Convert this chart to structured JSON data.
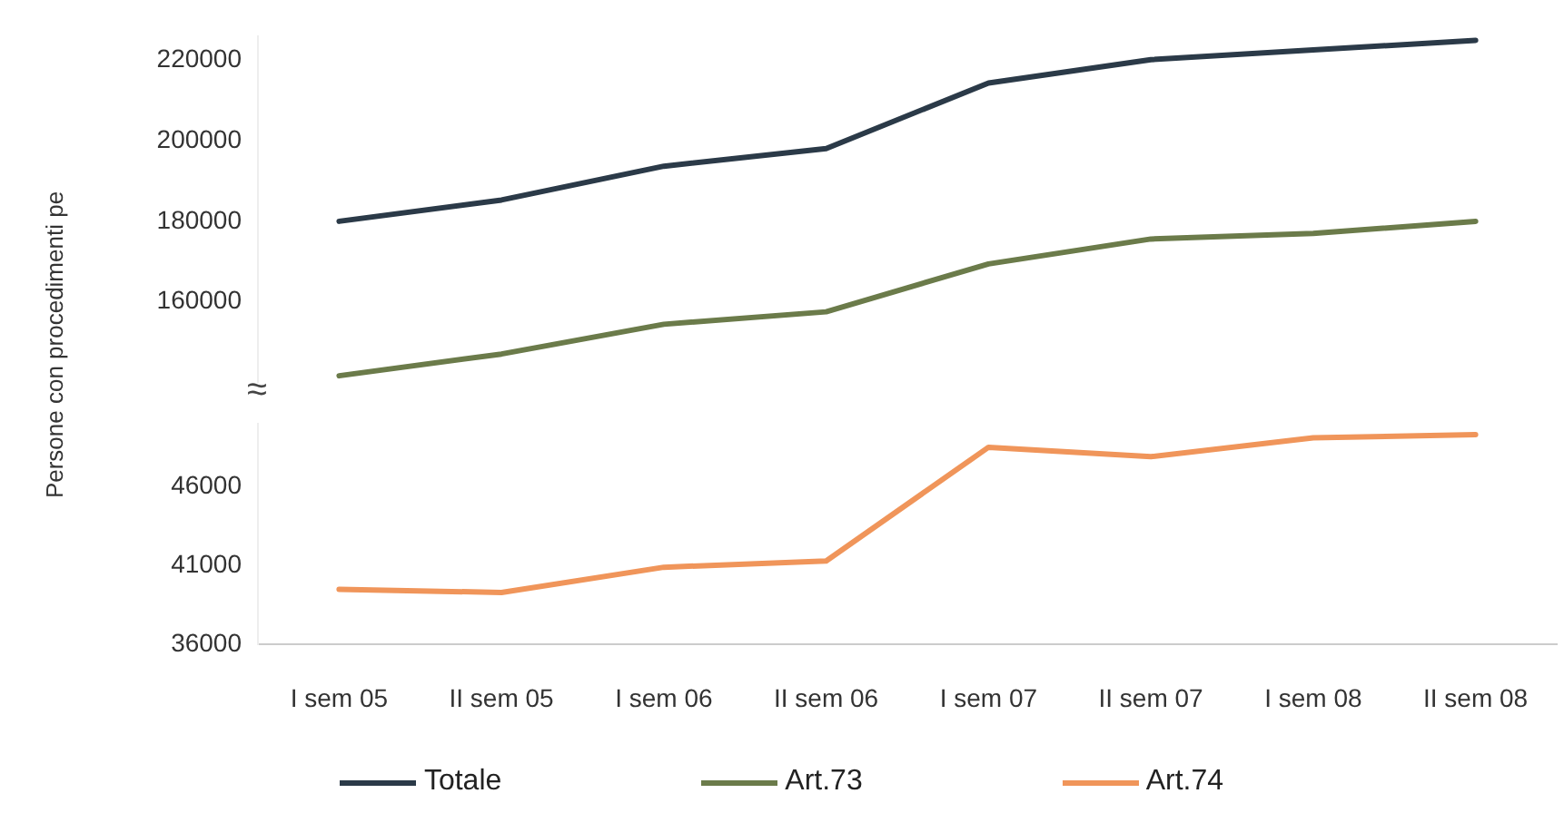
{
  "chart_data": [
    {
      "type": "line",
      "ylabel": "Persone con procedimenti pe",
      "categories": [
        "I sem 05",
        "II sem 05",
        "I sem 06",
        "II sem 06",
        "I sem 07",
        "II sem 07",
        "I sem 08",
        "II sem 08"
      ],
      "series": [
        {
          "name": "Totale",
          "color": "#2b3a48",
          "values": [
            180000,
            185300,
            193700,
            198100,
            214400,
            220200,
            222600,
            225000
          ]
        },
        {
          "name": "Art.73",
          "color": "#6b7b4a",
          "values": [
            141600,
            147000,
            154400,
            157500,
            169400,
            175600,
            177000,
            180000
          ]
        }
      ],
      "ylim": [
        140000,
        226000
      ],
      "yticks": [
        160000,
        180000,
        200000,
        220000
      ],
      "tick_labels": "y",
      "annotations": [
        "≈"
      ],
      "grid": false,
      "legend": "bottom",
      "marker": "none",
      "line_style": "solid"
    },
    {
      "type": "line",
      "categories": [
        "I sem 05",
        "II sem 05",
        "I sem 06",
        "II sem 06",
        "I sem 07",
        "II sem 07",
        "I sem 08",
        "II sem 08"
      ],
      "series": [
        {
          "name": "Art.74",
          "color": "#f0955a",
          "values": [
            39500,
            39300,
            40900,
            41300,
            48500,
            47900,
            49100,
            49300
          ]
        }
      ],
      "ylim": [
        36000,
        50000
      ],
      "yticks": [
        36000,
        41000,
        46000
      ],
      "grid": false,
      "legend": "bottom",
      "marker": "none",
      "line_style": "solid"
    }
  ]
}
